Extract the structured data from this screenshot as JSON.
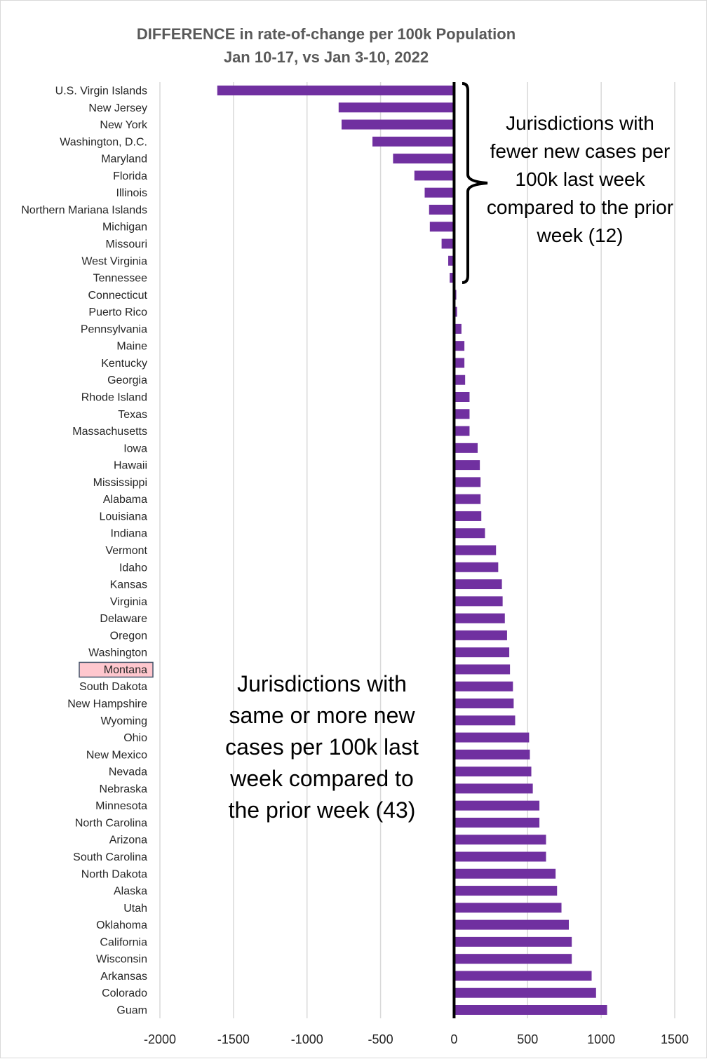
{
  "chart_data": {
    "type": "bar",
    "orientation": "horizontal",
    "title": "DIFFERENCE in rate-of-change per 100k Population",
    "subtitle": "Jan 10-17, vs Jan 3-10, 2022",
    "xlabel": "",
    "ylabel": "",
    "xlim": [
      -2000,
      1500
    ],
    "xticks": [
      -2000,
      -1500,
      -1000,
      -500,
      0,
      500,
      1000,
      1500
    ],
    "xtick_labels": [
      "-2000",
      "-1500",
      "-1000",
      "-500",
      "0",
      "500",
      "1000",
      "1500"
    ],
    "grid": "vertical",
    "bar_color": "#7030a0",
    "highlight_color": "#ffc7ce",
    "highlight_border": "#44546a",
    "highlighted_category": "Montana",
    "categories": [
      "U.S. Virgin Islands",
      "New Jersey",
      "New York",
      "Washington, D.C.",
      "Maryland",
      "Florida",
      "Illinois",
      "Northern Mariana Islands",
      "Michigan",
      "Missouri",
      "West Virginia",
      "Tennessee",
      "Connecticut",
      "Puerto Rico",
      "Pennsylvania",
      "Maine",
      "Kentucky",
      "Georgia",
      "Rhode Island",
      "Texas",
      "Massachusetts",
      "Iowa",
      "Hawaii",
      "Mississippi",
      "Alabama",
      "Louisiana",
      "Indiana",
      "Vermont",
      "Idaho",
      "Kansas",
      "Virginia",
      "Delaware",
      "Oregon",
      "Washington",
      "Montana",
      "South Dakota",
      "New Hampshire",
      "Wyoming",
      "Ohio",
      "New Mexico",
      "Nevada",
      "Nebraska",
      "Minnesota",
      "North Carolina",
      "Arizona",
      "South Carolina",
      "North Dakota",
      "Alaska",
      "Utah",
      "Oklahoma",
      "California",
      "Wisconsin",
      "Arkansas",
      "Colorado",
      "Guam"
    ],
    "values": [
      -1610,
      -785,
      -765,
      -555,
      -415,
      -270,
      -200,
      -170,
      -165,
      -85,
      -40,
      -30,
      15,
      20,
      50,
      70,
      70,
      75,
      105,
      105,
      105,
      160,
      175,
      180,
      180,
      185,
      210,
      285,
      300,
      325,
      330,
      345,
      360,
      375,
      380,
      400,
      405,
      415,
      510,
      515,
      525,
      535,
      580,
      580,
      625,
      625,
      690,
      700,
      730,
      780,
      800,
      800,
      935,
      965,
      1040
    ],
    "annotations": [
      {
        "name": "fewer-cases-note",
        "lines": [
          "Jurisdictions with",
          "fewer new cases per",
          "100k last week",
          "compared to the prior",
          "week (12)"
        ]
      },
      {
        "name": "more-cases-note",
        "lines": [
          "Jurisdictions with",
          "same or more new",
          "cases per 100k last",
          "week compared to",
          "the prior week (43)"
        ]
      }
    ]
  }
}
